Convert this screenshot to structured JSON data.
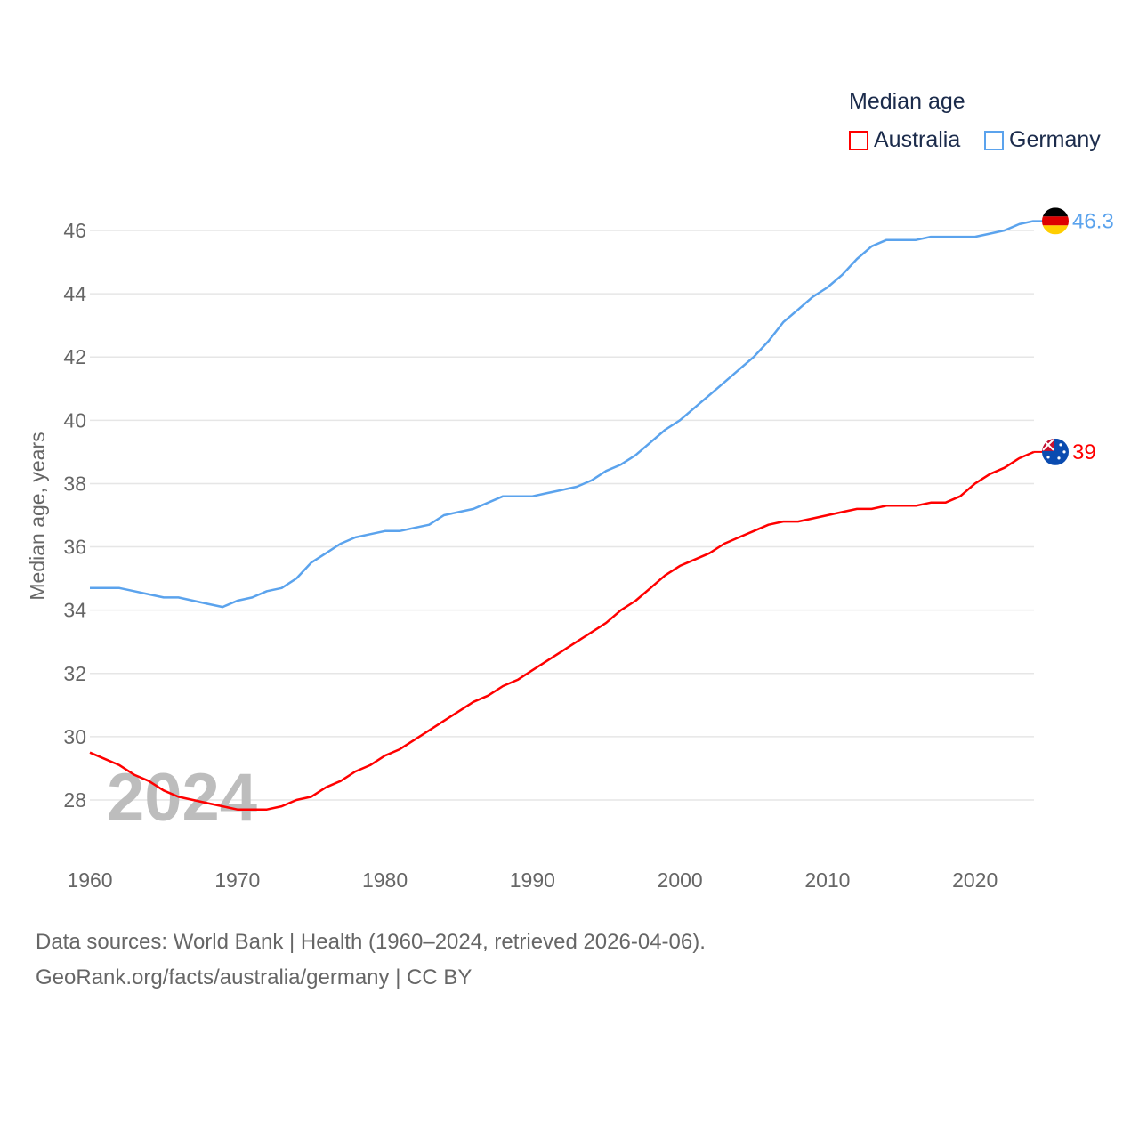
{
  "chart_data": {
    "type": "line",
    "title": "",
    "legend_title": "Median age",
    "legend_position": "top-right",
    "ylabel": "Median age, years",
    "xlabel": "",
    "xlim": [
      1960,
      2024
    ],
    "ylim": [
      26.5,
      47
    ],
    "x_ticks": [
      "1960",
      "1970",
      "1980",
      "1990",
      "2000",
      "2010",
      "2020"
    ],
    "y_ticks": [
      "28",
      "30",
      "32",
      "34",
      "36",
      "38",
      "40",
      "42",
      "44",
      "46"
    ],
    "grid": true,
    "watermark_year": "2024",
    "x": [
      1960,
      1961,
      1962,
      1963,
      1964,
      1965,
      1966,
      1967,
      1968,
      1969,
      1970,
      1971,
      1972,
      1973,
      1974,
      1975,
      1976,
      1977,
      1978,
      1979,
      1980,
      1981,
      1982,
      1983,
      1984,
      1985,
      1986,
      1987,
      1988,
      1989,
      1990,
      1991,
      1992,
      1993,
      1994,
      1995,
      1996,
      1997,
      1998,
      1999,
      2000,
      2001,
      2002,
      2003,
      2004,
      2005,
      2006,
      2007,
      2008,
      2009,
      2010,
      2011,
      2012,
      2013,
      2014,
      2015,
      2016,
      2017,
      2018,
      2019,
      2020,
      2021,
      2022,
      2023,
      2024
    ],
    "series": [
      {
        "name": "Australia",
        "color": "#ff0000",
        "end_label": "39",
        "values": [
          29.5,
          29.3,
          29.1,
          28.8,
          28.6,
          28.3,
          28.1,
          28.0,
          27.9,
          27.8,
          27.7,
          27.7,
          27.7,
          27.8,
          28.0,
          28.1,
          28.4,
          28.6,
          28.9,
          29.1,
          29.4,
          29.6,
          29.9,
          30.2,
          30.5,
          30.8,
          31.1,
          31.3,
          31.6,
          31.8,
          32.1,
          32.4,
          32.7,
          33.0,
          33.3,
          33.6,
          34.0,
          34.3,
          34.7,
          35.1,
          35.4,
          35.6,
          35.8,
          36.1,
          36.3,
          36.5,
          36.7,
          36.8,
          36.8,
          36.9,
          37.0,
          37.1,
          37.2,
          37.2,
          37.3,
          37.3,
          37.3,
          37.4,
          37.4,
          37.6,
          38.0,
          38.3,
          38.5,
          38.8,
          39.0
        ]
      },
      {
        "name": "Germany",
        "color": "#5ba3ed",
        "end_label": "46.3",
        "values": [
          34.7,
          34.7,
          34.7,
          34.6,
          34.5,
          34.4,
          34.4,
          34.3,
          34.2,
          34.1,
          34.3,
          34.4,
          34.6,
          34.7,
          35.0,
          35.5,
          35.8,
          36.1,
          36.3,
          36.4,
          36.5,
          36.5,
          36.6,
          36.7,
          37.0,
          37.1,
          37.2,
          37.4,
          37.6,
          37.6,
          37.6,
          37.7,
          37.8,
          37.9,
          38.1,
          38.4,
          38.6,
          38.9,
          39.3,
          39.7,
          40.0,
          40.4,
          40.8,
          41.2,
          41.6,
          42.0,
          42.5,
          43.1,
          43.5,
          43.9,
          44.2,
          44.6,
          45.1,
          45.5,
          45.7,
          45.7,
          45.7,
          45.8,
          45.8,
          45.8,
          45.8,
          45.9,
          46.0,
          46.2,
          46.3
        ]
      }
    ]
  },
  "footer": {
    "sources": "Data sources: World Bank | Health (1960–2024, retrieved 2026-04-06).",
    "credit": "GeoRank.org/facts/australia/germany | CC BY"
  }
}
